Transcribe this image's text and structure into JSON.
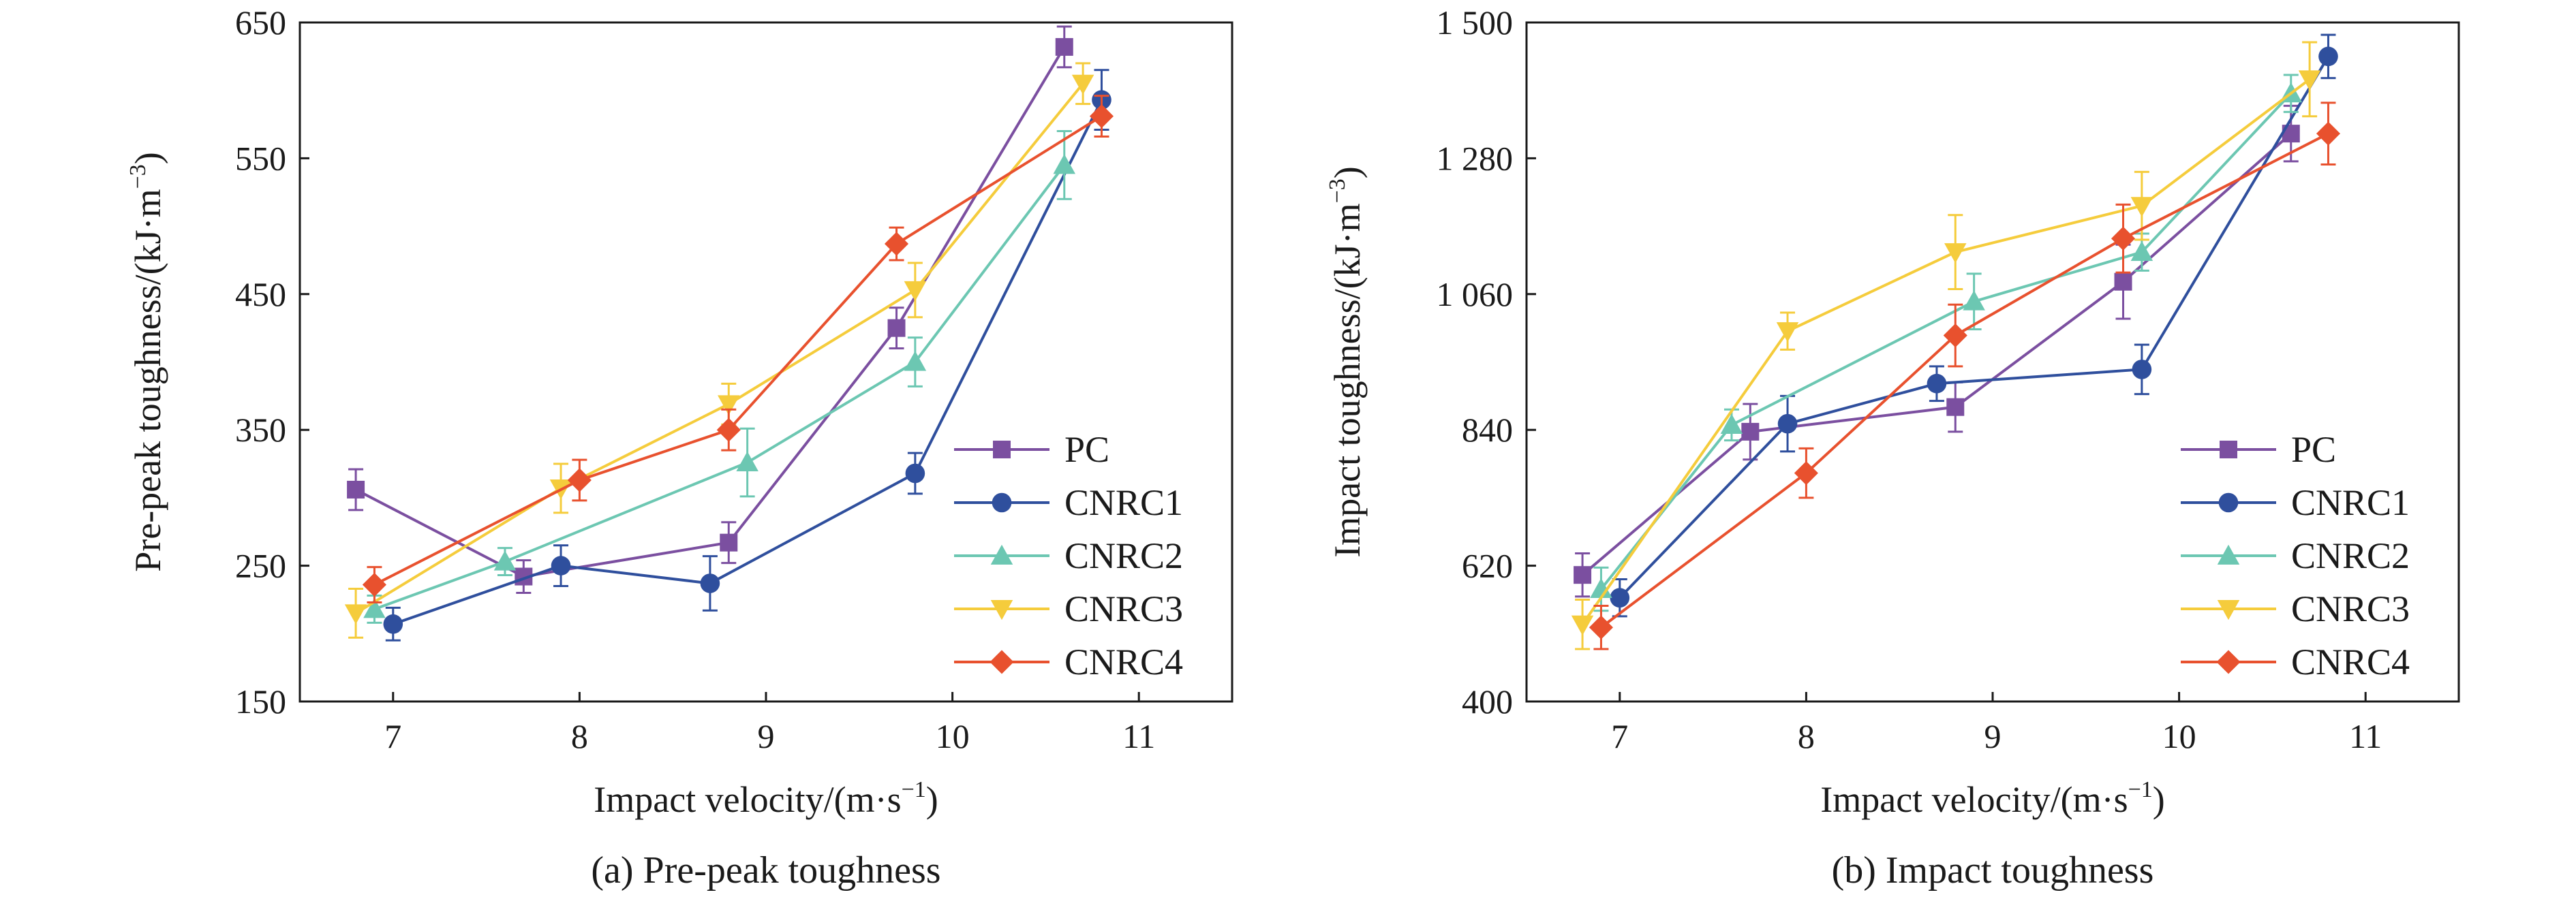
{
  "chart_data": [
    {
      "type": "line",
      "caption": "(a) Pre-peak toughness",
      "xlabel": "Impact velocity/(m·s",
      "xlabel_sup": "−1",
      "xlabel_end": ")",
      "ylabel": "Pre-peak toughness/(kJ·m",
      "ylabel_sup": "−3",
      "ylabel_end": ")",
      "xlim": [
        6.5,
        11.5
      ],
      "ylim": [
        150,
        650
      ],
      "xticks": [
        7,
        8,
        9,
        10,
        11
      ],
      "yticks": [
        150,
        250,
        350,
        450,
        550,
        650
      ],
      "ytick_labels": [
        "150",
        "250",
        "350",
        "450",
        "550",
        "650"
      ],
      "legend_position": "bottom-right",
      "grid": false,
      "series": [
        {
          "name": "PC",
          "color": "#7b4fa0",
          "marker": "square",
          "x": [
            6.8,
            7.7,
            8.8,
            9.7,
            10.6
          ],
          "y": [
            306,
            242,
            267,
            425,
            632
          ],
          "err": [
            15,
            12,
            15,
            15,
            15
          ]
        },
        {
          "name": "CNRC1",
          "color": "#2f4f9d",
          "marker": "circle",
          "x": [
            7.0,
            7.9,
            8.7,
            9.8,
            10.8
          ],
          "y": [
            207,
            250,
            237,
            318,
            593
          ],
          "err": [
            12,
            15,
            20,
            15,
            22
          ]
        },
        {
          "name": "CNRC2",
          "color": "#6cc7b2",
          "marker": "triangle-up",
          "x": [
            6.9,
            7.6,
            8.9,
            9.8,
            10.6
          ],
          "y": [
            218,
            253,
            326,
            400,
            545
          ],
          "err": [
            10,
            10,
            25,
            18,
            25
          ]
        },
        {
          "name": "CNRC3",
          "color": "#f5cc3c",
          "marker": "triangle-down",
          "x": [
            6.8,
            7.9,
            8.8,
            9.8,
            10.7
          ],
          "y": [
            215,
            307,
            369,
            453,
            605
          ],
          "err": [
            18,
            18,
            15,
            20,
            15
          ]
        },
        {
          "name": "CNRC4",
          "color": "#e8512e",
          "marker": "diamond",
          "x": [
            6.9,
            8.0,
            8.8,
            9.7,
            10.8
          ],
          "y": [
            236,
            313,
            350,
            487,
            581
          ],
          "err": [
            13,
            15,
            15,
            12,
            15
          ]
        }
      ]
    },
    {
      "type": "line",
      "caption": "(b) Impact toughness",
      "xlabel": "Impact velocity/(m·s",
      "xlabel_sup": "−1",
      "xlabel_end": ")",
      "ylabel": "Impact toughness/(kJ·m",
      "ylabel_sup": "−3",
      "ylabel_end": ")",
      "xlim": [
        6.5,
        11.5
      ],
      "ylim": [
        400,
        1500
      ],
      "xticks": [
        7,
        8,
        9,
        10,
        11
      ],
      "yticks": [
        400,
        620,
        840,
        1060,
        1280,
        1500
      ],
      "ytick_labels": [
        "400",
        "620",
        "840",
        "1 060",
        "1 280",
        "1 500"
      ],
      "legend_position": "bottom-right",
      "grid": false,
      "series": [
        {
          "name": "PC",
          "color": "#7b4fa0",
          "marker": "square",
          "x": [
            6.8,
            7.7,
            8.8,
            9.7,
            10.6
          ],
          "y": [
            605,
            837,
            877,
            1080,
            1320
          ],
          "err": [
            35,
            45,
            40,
            60,
            45
          ]
        },
        {
          "name": "CNRC1",
          "color": "#2f4f9d",
          "marker": "circle",
          "x": [
            7.0,
            7.9,
            8.7,
            9.8,
            10.8
          ],
          "y": [
            568,
            850,
            915,
            938,
            1445
          ],
          "err": [
            30,
            45,
            28,
            40,
            35
          ]
        },
        {
          "name": "CNRC2",
          "color": "#6cc7b2",
          "marker": "triangle-up",
          "x": [
            6.9,
            7.6,
            8.9,
            9.8,
            10.6
          ],
          "y": [
            582,
            848,
            1048,
            1128,
            1385
          ],
          "err": [
            35,
            25,
            45,
            30,
            30
          ]
        },
        {
          "name": "CNRC3",
          "color": "#f5cc3c",
          "marker": "triangle-down",
          "x": [
            6.8,
            7.9,
            8.8,
            9.8,
            10.7
          ],
          "y": [
            525,
            1000,
            1128,
            1203,
            1408
          ],
          "err": [
            40,
            30,
            60,
            55,
            60
          ]
        },
        {
          "name": "CNRC4",
          "color": "#e8512e",
          "marker": "diamond",
          "x": [
            6.9,
            8.0,
            8.8,
            9.7,
            10.8
          ],
          "y": [
            520,
            770,
            993,
            1150,
            1320
          ],
          "err": [
            35,
            40,
            50,
            55,
            50
          ]
        }
      ]
    }
  ]
}
